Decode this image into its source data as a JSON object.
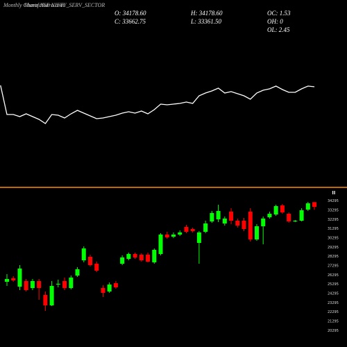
{
  "title": "Monthly Charts NSE NIFTY_SERV_SECTOR",
  "watermark": "MunafaSutra.com",
  "ohlc_labels": [
    "O: 34178.60",
    "H: 34178.60",
    "OC: 1.53",
    "C: 33662.75",
    "L: 33361.50",
    "OH: 0",
    "OL: 2.45"
  ],
  "chart_data": [
    {
      "type": "line",
      "color": "#ffffff",
      "ylim": [
        0,
        100
      ],
      "values": [
        77,
        35,
        35,
        32,
        36,
        32,
        28,
        22,
        35,
        34,
        30,
        36,
        41,
        37,
        33,
        29,
        30,
        32,
        34,
        37,
        39,
        37,
        40,
        36,
        42,
        50,
        49,
        50,
        51,
        53,
        51,
        62,
        66,
        69,
        73,
        66,
        68,
        65,
        62,
        57,
        66,
        70,
        72,
        76,
        71,
        67,
        67,
        72,
        76,
        75
      ]
    },
    {
      "type": "candlestick",
      "up_color": "#00ff00",
      "down_color": "#ff0000",
      "ylim": [
        19650,
        34800
      ],
      "yticks": [
        20295,
        21295,
        22295,
        23295,
        24295,
        25295,
        26295,
        27295,
        28295,
        29295,
        30295,
        31295,
        32295,
        33295,
        34295
      ],
      "open": [
        25575,
        25950,
        25050,
        25650,
        24900,
        25650,
        24150,
        23025,
        25275,
        25650,
        24900,
        26250,
        27900,
        28275,
        27525,
        24900,
        24525,
        25425,
        27525,
        28050,
        28575,
        28500,
        28500,
        27675,
        28575,
        30675,
        30450,
        30675,
        31500,
        31275,
        29775,
        30975,
        32100,
        32325,
        31875,
        33150,
        32175,
        32175,
        33150,
        30150,
        31575,
        32550,
        32850,
        33825,
        32925,
        32100,
        32175,
        33375,
        34178.6
      ],
      "high": [
        26400,
        26175,
        27375,
        25875,
        25875,
        25875,
        24525,
        25650,
        25800,
        26025,
        26250,
        27150,
        29400,
        28500,
        27750,
        25200,
        25500,
        25650,
        28425,
        28725,
        28725,
        28650,
        28725,
        29175,
        30825,
        30975,
        30900,
        31125,
        31725,
        31425,
        31050,
        32175,
        33225,
        33900,
        32625,
        33525,
        32400,
        32475,
        33525,
        31800,
        32625,
        33150,
        33900,
        33975,
        33075,
        32250,
        33525,
        34200,
        34178.6
      ],
      "low": [
        25125,
        25575,
        24675,
        24525,
        24675,
        23625,
        22425,
        22950,
        24975,
        24675,
        24750,
        26100,
        27675,
        27225,
        26625,
        23925,
        24375,
        24825,
        27375,
        27900,
        28050,
        27750,
        27675,
        27525,
        28425,
        30225,
        30300,
        30525,
        30825,
        30900,
        27525,
        30825,
        31950,
        32025,
        31650,
        31800,
        31425,
        31050,
        29925,
        30000,
        29625,
        32400,
        32700,
        32925,
        31950,
        32025,
        32100,
        33225,
        33361.5
      ],
      "close": [
        25875,
        25725,
        27000,
        24675,
        25650,
        24900,
        23025,
        25125,
        25350,
        24900,
        26025,
        26925,
        29175,
        27375,
        26775,
        24375,
        25275,
        24975,
        28200,
        28575,
        28200,
        27900,
        27750,
        29025,
        30675,
        30375,
        30675,
        30900,
        30975,
        31050,
        30900,
        31875,
        33000,
        33225,
        32400,
        32175,
        31650,
        31275,
        30150,
        31575,
        32400,
        32925,
        33750,
        33075,
        32100,
        32175,
        33300,
        34050,
        33662.75
      ]
    }
  ]
}
